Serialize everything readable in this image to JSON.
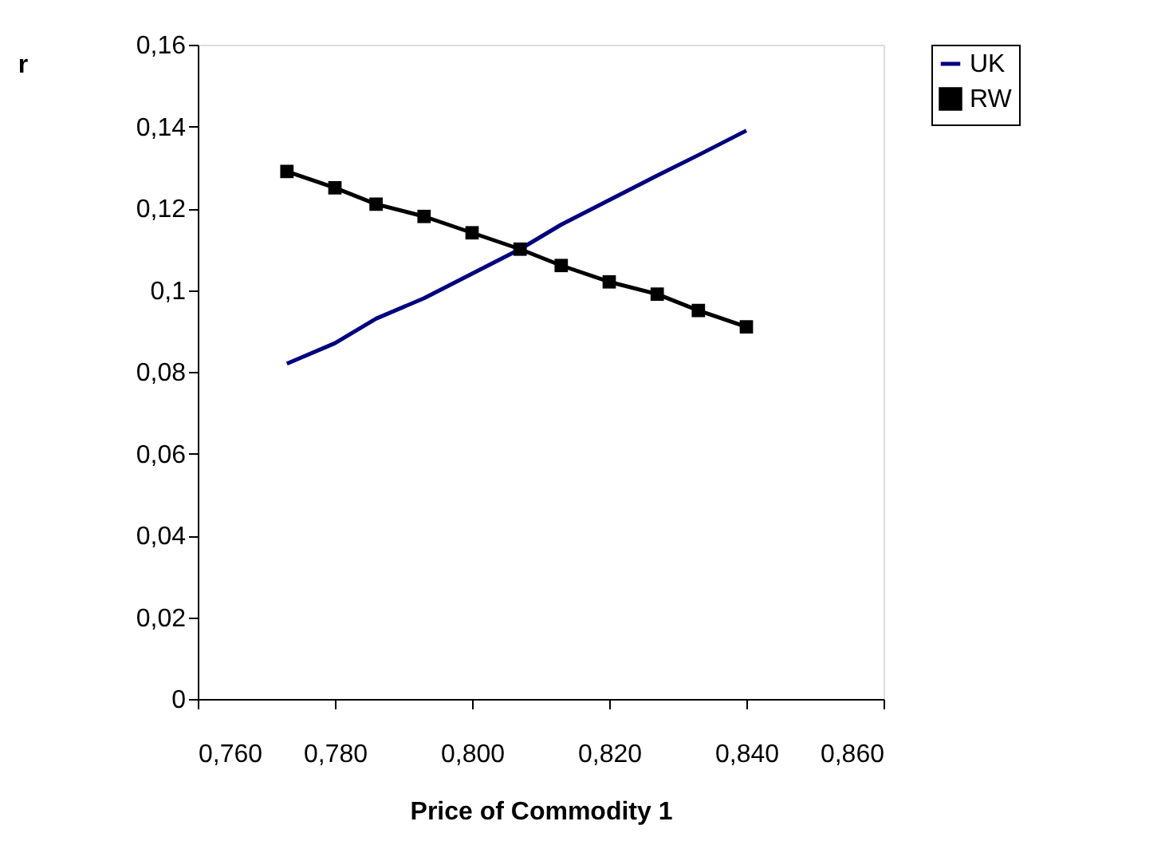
{
  "chart_data": {
    "type": "line",
    "xlabel": "Price of Commodity 1",
    "ylabel": "r",
    "x": [
      0.773,
      0.78,
      0.786,
      0.793,
      0.8,
      0.807,
      0.813,
      0.82,
      0.827,
      0.833,
      0.84
    ],
    "series": [
      {
        "name": "UK",
        "color": "#000080",
        "marker": "none",
        "values": [
          0.082,
          0.087,
          0.093,
          0.098,
          0.104,
          0.11,
          0.116,
          0.122,
          0.128,
          0.133,
          0.139
        ]
      },
      {
        "name": "RW",
        "color": "#000000",
        "marker": "square",
        "values": [
          0.129,
          0.125,
          0.121,
          0.118,
          0.114,
          0.11,
          0.106,
          0.102,
          0.099,
          0.095,
          0.091
        ]
      }
    ],
    "xlim": [
      0.76,
      0.86
    ],
    "xticks": [
      {
        "value": 0.76,
        "label": "0,760"
      },
      {
        "value": 0.78,
        "label": "0,780"
      },
      {
        "value": 0.8,
        "label": "0,800"
      },
      {
        "value": 0.82,
        "label": "0,820"
      },
      {
        "value": 0.84,
        "label": "0,840"
      },
      {
        "value": 0.86,
        "label": "0,860"
      }
    ],
    "ylim": [
      0,
      0.16
    ],
    "yticks": [
      {
        "value": 0,
        "label": "0"
      },
      {
        "value": 0.02,
        "label": "0,02"
      },
      {
        "value": 0.04,
        "label": "0,04"
      },
      {
        "value": 0.06,
        "label": "0,06"
      },
      {
        "value": 0.08,
        "label": "0,08"
      },
      {
        "value": 0.1,
        "label": "0,1"
      },
      {
        "value": 0.12,
        "label": "0,12"
      },
      {
        "value": 0.14,
        "label": "0,14"
      },
      {
        "value": 0.16,
        "label": "0,16"
      }
    ],
    "grid": false,
    "legend": "right",
    "line_style": "solid"
  }
}
